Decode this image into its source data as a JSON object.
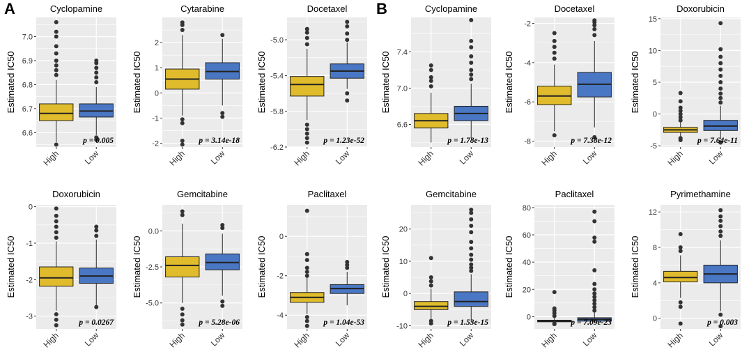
{
  "panel_labels": [
    "A",
    "B"
  ],
  "colors": {
    "high": "#E0BC2D",
    "low": "#4A77C4",
    "panel_bg": "#EBEBEB",
    "grid": "#ffffff",
    "outlier": "#333333"
  },
  "chart_data": [
    {
      "panel": "A",
      "title": "Cyclopamine",
      "type": "box",
      "ylabel": "Estimated IC50",
      "categories": [
        "High",
        "Low"
      ],
      "ylim": [
        6.54,
        7.08
      ],
      "yticks": [
        6.6,
        6.7,
        6.8,
        6.9,
        7.0
      ],
      "yticklabels": [
        "6.6",
        "6.7",
        "6.8",
        "6.9",
        "7.0"
      ],
      "pvalue": "p = 0.005",
      "boxes": [
        {
          "group": "High",
          "min": 6.56,
          "q1": 6.65,
          "median": 6.68,
          "q3": 6.72,
          "max": 6.82,
          "outliers": [
            6.84,
            6.86,
            6.88,
            6.9,
            6.93,
            6.96,
            7.0,
            7.02,
            7.06,
            6.55
          ]
        },
        {
          "group": "Low",
          "min": 6.59,
          "q1": 6.665,
          "median": 6.69,
          "q3": 6.72,
          "max": 6.79,
          "outliers": [
            6.81,
            6.83,
            6.85,
            6.87,
            6.89,
            6.9,
            6.58,
            6.57
          ]
        }
      ]
    },
    {
      "panel": "A",
      "title": "Cytarabine",
      "type": "box",
      "ylabel": "Estimated IC50",
      "categories": [
        "High",
        "Low"
      ],
      "ylim": [
        -2.15,
        3.0
      ],
      "yticks": [
        -2,
        -1,
        0,
        1,
        2
      ],
      "yticklabels": [
        "-2",
        "-1",
        "0",
        "1",
        "2"
      ],
      "pvalue": "p = 3.14e-18",
      "boxes": [
        {
          "group": "High",
          "min": -0.9,
          "q1": 0.15,
          "median": 0.55,
          "q3": 0.95,
          "max": 2.3,
          "outliers": [
            2.5,
            2.7,
            2.8,
            -1.05,
            -1.2,
            -1.9,
            -2.05
          ]
        },
        {
          "group": "Low",
          "min": -0.5,
          "q1": 0.55,
          "median": 0.85,
          "q3": 1.2,
          "max": 2.15,
          "outliers": [
            2.3,
            -0.8,
            -0.95
          ]
        }
      ]
    },
    {
      "panel": "A",
      "title": "Docetaxel",
      "type": "box",
      "ylabel": "Estimated IC50",
      "categories": [
        "High",
        "Low"
      ],
      "ylim": [
        -6.2,
        -4.75
      ],
      "yticks": [
        -6.2,
        -5.8,
        -5.4,
        -5.0
      ],
      "yticklabels": [
        "-6.2",
        "-5.8",
        "-5.4",
        "-5.0"
      ],
      "pvalue": "p = 1.23e-52",
      "boxes": [
        {
          "group": "High",
          "min": -5.9,
          "q1": -5.63,
          "median": -5.5,
          "q3": -5.41,
          "max": -5.1,
          "outliers": [
            -5.05,
            -4.98,
            -4.92,
            -4.88,
            -5.95,
            -6.0,
            -6.05,
            -6.1,
            -6.15
          ]
        },
        {
          "group": "Low",
          "min": -5.55,
          "q1": -5.43,
          "median": -5.35,
          "q3": -5.27,
          "max": -5.03,
          "outliers": [
            -5.0,
            -4.93,
            -4.85,
            -4.8,
            -5.6,
            -5.68
          ]
        }
      ]
    },
    {
      "panel": "B",
      "title": "Cyclopamine",
      "type": "box",
      "ylabel": "Estimated IC50",
      "categories": [
        "High",
        "Low"
      ],
      "ylim": [
        6.35,
        7.78
      ],
      "yticks": [
        6.6,
        7.0,
        7.4
      ],
      "yticklabels": [
        "6.6",
        "7.0",
        "7.4"
      ],
      "pvalue": "p = 1.78e-13",
      "boxes": [
        {
          "group": "High",
          "min": 6.4,
          "q1": 6.56,
          "median": 6.64,
          "q3": 6.72,
          "max": 6.95,
          "outliers": [
            7.02,
            7.08,
            7.12,
            7.2,
            7.25
          ]
        },
        {
          "group": "Low",
          "min": 6.45,
          "q1": 6.64,
          "median": 6.72,
          "q3": 6.8,
          "max": 7.05,
          "outliers": [
            7.1,
            7.15,
            7.2,
            7.28,
            7.35,
            7.45,
            7.52,
            7.75
          ]
        }
      ]
    },
    {
      "panel": "B",
      "title": "Docetaxel",
      "type": "box",
      "ylabel": "Estimated IC50",
      "categories": [
        "High",
        "Low"
      ],
      "ylim": [
        -8.3,
        -1.7
      ],
      "yticks": [
        -8,
        -6,
        -4,
        -2
      ],
      "yticklabels": [
        "-8",
        "-6",
        "-4",
        "-2"
      ],
      "pvalue": "p = 7.38e-12",
      "boxes": [
        {
          "group": "High",
          "min": -7.5,
          "q1": -6.15,
          "median": -5.7,
          "q3": -5.2,
          "max": -4.1,
          "outliers": [
            -3.8,
            -3.5,
            -3.2,
            -2.9,
            -2.5,
            -7.7
          ]
        },
        {
          "group": "Low",
          "min": -7.3,
          "q1": -5.75,
          "median": -5.1,
          "q3": -4.5,
          "max": -2.9,
          "outliers": [
            -2.6,
            -2.3,
            -2.1,
            -1.95,
            -1.85,
            -7.8
          ]
        }
      ]
    },
    {
      "panel": "B",
      "title": "Doxorubicin",
      "type": "box",
      "ylabel": "Estimated IC50",
      "categories": [
        "High",
        "Low"
      ],
      "ylim": [
        -5.2,
        15.2
      ],
      "yticks": [
        -5,
        0,
        5,
        10,
        15
      ],
      "yticklabels": [
        "-5",
        "0",
        "5",
        "10",
        "15"
      ],
      "pvalue": "p = 7.64e-11",
      "boxes": [
        {
          "group": "High",
          "min": -3.5,
          "q1": -2.9,
          "median": -2.5,
          "q3": -2.1,
          "max": -1.3,
          "outliers": [
            -1.0,
            -0.5,
            0.0,
            0.5,
            1.0,
            2.0,
            3.3,
            -3.8,
            -4.1
          ]
        },
        {
          "group": "Low",
          "min": -4.0,
          "q1": -2.6,
          "median": -1.9,
          "q3": -1.0,
          "max": 1.3,
          "outliers": [
            1.8,
            2.5,
            3.2,
            4.0,
            5.0,
            6.0,
            7.0,
            8.0,
            9.0,
            10.2,
            14.3,
            -4.5
          ]
        }
      ]
    },
    {
      "panel": "A",
      "title": "Doxorubicin",
      "type": "box",
      "ylabel": "Estimated IC50",
      "categories": [
        "High",
        "Low"
      ],
      "ylim": [
        -3.35,
        0.05
      ],
      "yticks": [
        -3,
        -2,
        -1,
        0
      ],
      "yticklabels": [
        "-3",
        "-2",
        "-1",
        "0"
      ],
      "pvalue": "p = 0.0267",
      "boxes": [
        {
          "group": "High",
          "min": -2.85,
          "q1": -2.18,
          "median": -1.95,
          "q3": -1.65,
          "max": -0.95,
          "outliers": [
            -0.85,
            -0.7,
            -0.55,
            -0.4,
            -0.25,
            -0.05,
            -2.95,
            -3.1,
            -3.25
          ]
        },
        {
          "group": "Low",
          "min": -2.7,
          "q1": -2.1,
          "median": -1.9,
          "q3": -1.68,
          "max": -0.9,
          "outliers": [
            -0.8,
            -0.65,
            -0.55,
            -2.75
          ]
        }
      ]
    },
    {
      "panel": "A",
      "title": "Gemcitabine",
      "type": "box",
      "ylabel": "Estimated IC50",
      "categories": [
        "High",
        "Low"
      ],
      "ylim": [
        -6.8,
        1.8
      ],
      "yticks": [
        -5.0,
        -2.5,
        0.0
      ],
      "yticklabels": [
        "-5.0",
        "-2.5",
        "0.0"
      ],
      "pvalue": "p = 5.28e-06",
      "boxes": [
        {
          "group": "High",
          "min": -5.0,
          "q1": -3.2,
          "median": -2.4,
          "q3": -1.8,
          "max": 0.5,
          "outliers": [
            1.1,
            1.35,
            -5.4,
            -5.8,
            -6.2,
            -6.5
          ]
        },
        {
          "group": "Low",
          "min": -4.5,
          "q1": -2.7,
          "median": -2.2,
          "q3": -1.6,
          "max": -0.2,
          "outliers": [
            0.2,
            0.4,
            -4.9,
            -5.2
          ]
        }
      ]
    },
    {
      "panel": "A",
      "title": "Paclitaxel",
      "type": "box",
      "ylabel": "Estimated IC50",
      "categories": [
        "High",
        "Low"
      ],
      "ylim": [
        -4.7,
        1.6
      ],
      "yticks": [
        -4,
        -2,
        0
      ],
      "yticklabels": [
        "-4",
        "-2",
        "0"
      ],
      "pvalue": "p = 1.04e-53",
      "boxes": [
        {
          "group": "High",
          "min": -3.95,
          "q1": -3.35,
          "median": -3.1,
          "q3": -2.85,
          "max": -2.1,
          "outliers": [
            -2.0,
            -1.8,
            -1.6,
            -1.2,
            -0.9,
            1.3,
            -4.1,
            -4.3,
            -4.55
          ]
        },
        {
          "group": "Low",
          "min": -3.5,
          "q1": -2.9,
          "median": -2.65,
          "q3": -2.45,
          "max": -1.8,
          "outliers": [
            -1.6,
            -1.45,
            -1.3
          ]
        }
      ]
    },
    {
      "panel": "B",
      "title": "Gemcitabine",
      "type": "box",
      "ylabel": "Estimated IC50",
      "categories": [
        "High",
        "Low"
      ],
      "ylim": [
        -11.0,
        27.5
      ],
      "yticks": [
        -10,
        0,
        10,
        20
      ],
      "yticklabels": [
        "-10",
        "0",
        "10",
        "20"
      ],
      "pvalue": "p = 1.53e-15",
      "boxes": [
        {
          "group": "High",
          "min": -7.8,
          "q1": -5.0,
          "median": -4.0,
          "q3": -2.5,
          "max": 1.5,
          "outliers": [
            2.5,
            3.8,
            5.0,
            11.0,
            -8.5,
            -9.3
          ]
        },
        {
          "group": "Low",
          "min": -9.0,
          "q1": -4.0,
          "median": -2.5,
          "q3": 0.5,
          "max": 6.0,
          "outliers": [
            7.0,
            8.0,
            9.0,
            10.5,
            12.0,
            14.0,
            16.0,
            19.0,
            21.0,
            23.0,
            25.0,
            26.0
          ]
        }
      ]
    },
    {
      "panel": "B",
      "title": "Paclitaxel",
      "type": "box",
      "ylabel": "Estimated IC50",
      "categories": [
        "High",
        "Low"
      ],
      "ylim": [
        -9.0,
        82.0
      ],
      "yticks": [
        0,
        20,
        40,
        60,
        80
      ],
      "yticklabels": [
        "0",
        "20",
        "40",
        "60",
        "80"
      ],
      "pvalue": "p = 7.09e-23",
      "boxes": [
        {
          "group": "High",
          "min": -4.5,
          "q1": -3.8,
          "median": -3.2,
          "q3": -2.6,
          "max": -1.0,
          "outliers": [
            0.5,
            2.5,
            4.5,
            6.0,
            18.0,
            -5.0,
            -5.5
          ]
        },
        {
          "group": "Low",
          "min": -4.8,
          "q1": -3.3,
          "median": -2.0,
          "q3": -0.8,
          "max": 3.0,
          "outliers": [
            4.5,
            7.0,
            9.5,
            12.0,
            14.5,
            17.0,
            20.0,
            24.0,
            34.0,
            55.0,
            58.0,
            70.0,
            77.0
          ]
        }
      ]
    },
    {
      "panel": "B",
      "title": "Pyrimethamine",
      "type": "box",
      "ylabel": "Estimated IC50",
      "categories": [
        "High",
        "Low"
      ],
      "ylim": [
        -1.2,
        12.8
      ],
      "yticks": [
        0,
        4,
        8,
        12
      ],
      "yticklabels": [
        "0",
        "4",
        "8",
        "12"
      ],
      "pvalue": "p = 0.003",
      "boxes": [
        {
          "group": "High",
          "min": 2.3,
          "q1": 4.1,
          "median": 4.6,
          "q3": 5.3,
          "max": 7.1,
          "outliers": [
            7.6,
            8.0,
            9.5,
            1.8,
            1.3,
            -0.6
          ]
        },
        {
          "group": "Low",
          "min": 0.8,
          "q1": 4.0,
          "median": 5.0,
          "q3": 6.0,
          "max": 8.8,
          "outliers": [
            9.3,
            9.8,
            10.4,
            11.0,
            11.5,
            12.2,
            0.4,
            -0.9
          ]
        }
      ]
    }
  ]
}
